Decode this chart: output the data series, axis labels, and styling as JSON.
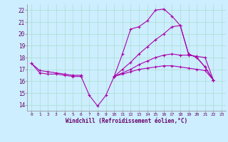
{
  "xlabel": "Windchill (Refroidissement éolien,°C)",
  "background_color": "#cceeff",
  "grid_color": "#aaddcc",
  "line_color": "#aa00aa",
  "x_ticks": [
    0,
    1,
    2,
    3,
    4,
    5,
    6,
    7,
    8,
    9,
    10,
    11,
    12,
    13,
    14,
    15,
    16,
    17,
    18,
    19,
    20,
    21,
    22,
    23
  ],
  "ylim": [
    13.5,
    22.5
  ],
  "xlim": [
    -0.5,
    23.5
  ],
  "yticks": [
    14,
    15,
    16,
    17,
    18,
    19,
    20,
    21,
    22
  ],
  "line1": [
    17.5,
    16.7,
    16.6,
    16.6,
    16.5,
    16.4,
    16.4,
    14.8,
    13.9,
    14.8,
    16.4,
    18.3,
    20.4,
    20.6,
    21.1,
    22.0,
    22.1,
    21.5,
    20.7,
    18.3,
    18.0,
    17.2,
    16.1,
    null
  ],
  "line2": [
    null,
    null,
    null,
    null,
    null,
    null,
    null,
    null,
    null,
    null,
    16.4,
    16.7,
    17.0,
    17.4,
    17.7,
    18.0,
    18.2,
    18.3,
    18.2,
    18.2,
    18.1,
    18.0,
    16.1,
    null
  ],
  "line3": [
    17.5,
    16.9,
    16.8,
    16.7,
    16.6,
    16.5,
    16.5,
    null,
    null,
    null,
    16.4,
    16.6,
    16.8,
    17.0,
    17.1,
    17.2,
    17.3,
    17.3,
    17.2,
    17.1,
    17.0,
    16.9,
    16.1,
    null
  ],
  "line4": [
    null,
    null,
    null,
    null,
    null,
    null,
    null,
    null,
    null,
    null,
    16.4,
    17.0,
    17.6,
    18.3,
    18.9,
    19.5,
    20.0,
    20.6,
    20.7,
    18.3,
    18.0,
    17.2,
    16.1,
    null
  ]
}
